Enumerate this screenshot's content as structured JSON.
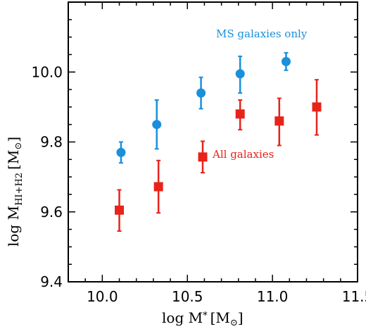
{
  "chart_data": {
    "type": "scatter",
    "title": "",
    "xlabel": {
      "main": "log M",
      "sub": "*",
      "unit": "[M",
      "unit_sub": "⊙",
      "unit_close": "]"
    },
    "ylabel": {
      "main": "log M",
      "sub": "HI+H2",
      "unit": "[M",
      "unit_sub": "⊙",
      "unit_close": "]"
    },
    "xlim": [
      9.8,
      11.5
    ],
    "ylim": [
      9.4,
      10.2
    ],
    "xticks": [
      "10.0",
      "10.5",
      "11.0",
      "11.5"
    ],
    "yticks": [
      "9.4",
      "9.6",
      "9.8",
      "10.0"
    ],
    "xtick_values": [
      10.0,
      10.5,
      11.0,
      11.5
    ],
    "ytick_values": [
      9.4,
      9.6,
      9.8,
      10.0
    ],
    "grid": false,
    "series": [
      {
        "name": "MS galaxies only",
        "marker": "circle",
        "color": "#1a8fdb",
        "x": [
          10.11,
          10.32,
          10.58,
          10.81,
          11.08
        ],
        "y": [
          9.77,
          9.85,
          9.94,
          9.995,
          10.03
        ],
        "yerr_low": [
          0.03,
          0.07,
          0.045,
          0.055,
          0.025
        ],
        "yerr_high": [
          0.03,
          0.07,
          0.045,
          0.05,
          0.025
        ]
      },
      {
        "name": "All galaxies",
        "marker": "square",
        "color": "#e8231a",
        "x": [
          10.1,
          10.33,
          10.59,
          10.81,
          11.04,
          11.26
        ],
        "y": [
          9.605,
          9.672,
          9.757,
          9.88,
          9.86,
          9.9
        ],
        "yerr_low": [
          0.06,
          0.075,
          0.045,
          0.045,
          0.07,
          0.08
        ],
        "yerr_high": [
          0.058,
          0.075,
          0.045,
          0.04,
          0.065,
          0.078
        ]
      }
    ]
  }
}
